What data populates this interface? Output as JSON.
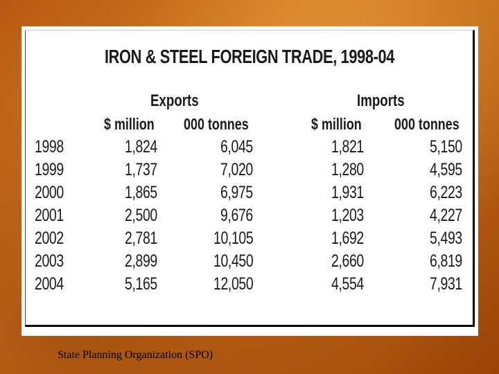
{
  "title": "IRON & STEEL FOREIGN TRADE, 1998-04",
  "groups": {
    "exports": "Exports",
    "imports": "Imports"
  },
  "columns": [
    "$ million",
    "000 tonnes",
    "$ million",
    "000 tonnes"
  ],
  "rows": [
    {
      "year": "1998",
      "values": [
        "1,824",
        "6,045",
        "1,821",
        "5,150"
      ]
    },
    {
      "year": "1999",
      "values": [
        "1,737",
        "7,020",
        "1,280",
        "4,595"
      ]
    },
    {
      "year": "2000",
      "values": [
        "1,865",
        "6,975",
        "1,931",
        "6,223"
      ]
    },
    {
      "year": "2001",
      "values": [
        "2,500",
        "9,676",
        "1,203",
        "4,227"
      ]
    },
    {
      "year": "2002",
      "values": [
        "2,781",
        "10,105",
        "1,692",
        "5,493"
      ]
    },
    {
      "year": "2003",
      "values": [
        "2,899",
        "10,450",
        "2,660",
        "6,819"
      ]
    },
    {
      "year": "2004",
      "values": [
        "5,165",
        "12,050",
        "4,554",
        "7,931"
      ]
    }
  ],
  "caption": "State Planning Organization (SPO)"
}
